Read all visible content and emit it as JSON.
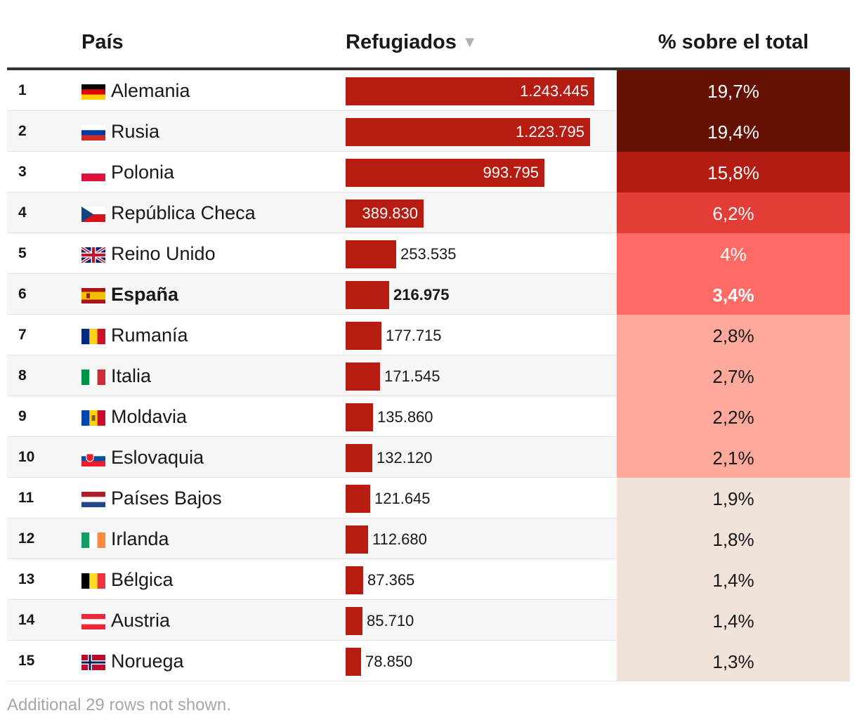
{
  "header": {
    "country": "País",
    "refugees": "Refugiados",
    "sort_icon": "▼",
    "percent": "% sobre el total"
  },
  "chart_data": {
    "type": "table",
    "columns": [
      "País",
      "Refugiados",
      "% sobre el total"
    ],
    "bar_max": 1243445,
    "rows": [
      {
        "rank": "1",
        "flag": "germany-flag-icon",
        "country": "Alemania",
        "refugees": 1243445,
        "label": "1.243.445",
        "percent": "19,7%",
        "pct_color": "#651104",
        "pct_text": "#ffffff"
      },
      {
        "rank": "2",
        "flag": "russia-flag-icon",
        "country": "Rusia",
        "refugees": 1223795,
        "label": "1.223.795",
        "percent": "19,4%",
        "pct_color": "#651104",
        "pct_text": "#ffffff"
      },
      {
        "rank": "3",
        "flag": "poland-flag-icon",
        "country": "Polonia",
        "refugees": 993795,
        "label": "993.795",
        "percent": "15,8%",
        "pct_color": "#b31c12",
        "pct_text": "#ffffff"
      },
      {
        "rank": "4",
        "flag": "czech-flag-icon",
        "country": "República Checa",
        "refugees": 389830,
        "label": "389.830",
        "percent": "6,2%",
        "pct_color": "#e43c36",
        "pct_text": "#ffffff"
      },
      {
        "rank": "5",
        "flag": "uk-flag-icon",
        "country": "Reino Unido",
        "refugees": 253535,
        "label": "253.535",
        "percent": "4%",
        "pct_color": "#fe6b65",
        "pct_text": "#ffffff"
      },
      {
        "rank": "6",
        "flag": "spain-flag-icon",
        "country": "España",
        "refugees": 216975,
        "label": "216.975",
        "percent": "3,4%",
        "pct_color": "#fe6b65",
        "pct_text": "#ffffff",
        "bold": true
      },
      {
        "rank": "7",
        "flag": "romania-flag-icon",
        "country": "Rumanía",
        "refugees": 177715,
        "label": "177.715",
        "percent": "2,8%",
        "pct_color": "#fea99b",
        "pct_text": "#181818"
      },
      {
        "rank": "8",
        "flag": "italy-flag-icon",
        "country": "Italia",
        "refugees": 171545,
        "label": "171.545",
        "percent": "2,7%",
        "pct_color": "#fea99b",
        "pct_text": "#181818"
      },
      {
        "rank": "9",
        "flag": "moldova-flag-icon",
        "country": "Moldavia",
        "refugees": 135860,
        "label": "135.860",
        "percent": "2,2%",
        "pct_color": "#fea99b",
        "pct_text": "#181818"
      },
      {
        "rank": "10",
        "flag": "slovakia-flag-icon",
        "country": "Eslovaquia",
        "refugees": 132120,
        "label": "132.120",
        "percent": "2,1%",
        "pct_color": "#fea99b",
        "pct_text": "#181818"
      },
      {
        "rank": "11",
        "flag": "netherlands-flag-icon",
        "country": "Países Bajos",
        "refugees": 121645,
        "label": "121.645",
        "percent": "1,9%",
        "pct_color": "#f1e3da",
        "pct_text": "#181818"
      },
      {
        "rank": "12",
        "flag": "ireland-flag-icon",
        "country": "Irlanda",
        "refugees": 112680,
        "label": "112.680",
        "percent": "1,8%",
        "pct_color": "#f1e3da",
        "pct_text": "#181818"
      },
      {
        "rank": "13",
        "flag": "belgium-flag-icon",
        "country": "Bélgica",
        "refugees": 87365,
        "label": "87.365",
        "percent": "1,4%",
        "pct_color": "#f1e3da",
        "pct_text": "#181818"
      },
      {
        "rank": "14",
        "flag": "austria-flag-icon",
        "country": "Austria",
        "refugees": 85710,
        "label": "85.710",
        "percent": "1,4%",
        "pct_color": "#f1e3da",
        "pct_text": "#181818"
      },
      {
        "rank": "15",
        "flag": "norway-flag-icon",
        "country": "Noruega",
        "refugees": 78850,
        "label": "78.850",
        "percent": "1,3%",
        "pct_color": "#f1e3da",
        "pct_text": "#181818"
      }
    ]
  },
  "footer": {
    "note": "Additional 29 rows not shown."
  }
}
